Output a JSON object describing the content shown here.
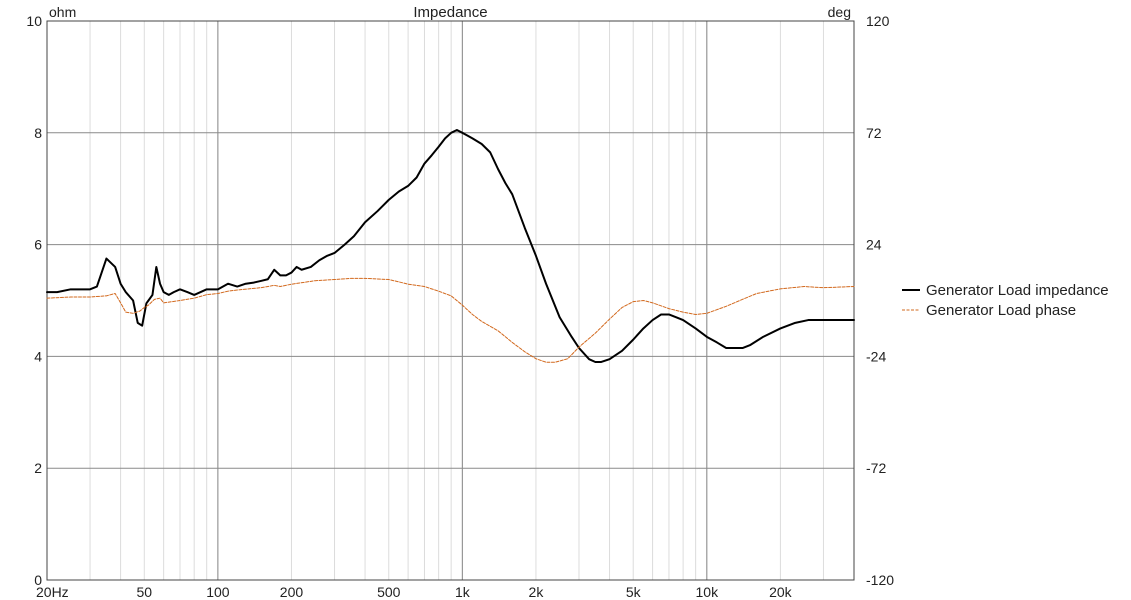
{
  "chart_data": {
    "type": "line",
    "title": "Impedance",
    "left_unit": "ohm",
    "right_unit": "deg",
    "x_scale": "log",
    "xlim": [
      20,
      40000
    ],
    "ylim": [
      0,
      10
    ],
    "y2lim": [
      -120,
      120
    ],
    "grid": true,
    "legend_position": "right",
    "x_ticks": [
      {
        "value": 20,
        "label": "20Hz"
      },
      {
        "value": 50,
        "label": "50"
      },
      {
        "value": 100,
        "label": "100"
      },
      {
        "value": 200,
        "label": "200"
      },
      {
        "value": 500,
        "label": "500"
      },
      {
        "value": 1000,
        "label": "1k"
      },
      {
        "value": 2000,
        "label": "2k"
      },
      {
        "value": 5000,
        "label": "5k"
      },
      {
        "value": 10000,
        "label": "10k"
      },
      {
        "value": 20000,
        "label": "20k"
      }
    ],
    "y_ticks": [
      {
        "value": 0,
        "label": "0"
      },
      {
        "value": 2,
        "label": "2"
      },
      {
        "value": 4,
        "label": "4"
      },
      {
        "value": 6,
        "label": "6"
      },
      {
        "value": 8,
        "label": "8"
      },
      {
        "value": 10,
        "label": "10"
      }
    ],
    "y2_ticks": [
      {
        "value": -120,
        "label": "-120"
      },
      {
        "value": -72,
        "label": "-72"
      },
      {
        "value": -24,
        "label": "-24"
      },
      {
        "value": 24,
        "label": "24"
      },
      {
        "value": 72,
        "label": "72"
      },
      {
        "value": 120,
        "label": "120"
      }
    ],
    "series": [
      {
        "name": "Generator Load impedance",
        "axis": "left",
        "color": "#000000",
        "style": "solid",
        "x": [
          20,
          22,
          25,
          28,
          30,
          32,
          35,
          38,
          40,
          42,
          45,
          47,
          49,
          51,
          52,
          54,
          56,
          58,
          60,
          63,
          66,
          70,
          75,
          80,
          90,
          100,
          110,
          120,
          130,
          140,
          150,
          160,
          170,
          180,
          190,
          200,
          210,
          220,
          240,
          260,
          280,
          300,
          330,
          360,
          400,
          450,
          500,
          550,
          600,
          650,
          700,
          750,
          800,
          850,
          900,
          950,
          1000,
          1050,
          1100,
          1200,
          1300,
          1400,
          1500,
          1600,
          1800,
          2000,
          2200,
          2500,
          2800,
          3000,
          3300,
          3500,
          3700,
          4000,
          4500,
          5000,
          5500,
          6000,
          6500,
          7000,
          7500,
          8000,
          9000,
          10000,
          11000,
          12000,
          13000,
          14000,
          15000,
          17000,
          20000,
          23000,
          26000,
          30000,
          35000,
          40000
        ],
        "y": [
          5.15,
          5.15,
          5.2,
          5.2,
          5.2,
          5.25,
          5.75,
          5.6,
          5.3,
          5.15,
          5.0,
          4.6,
          4.55,
          4.95,
          5.0,
          5.1,
          5.6,
          5.3,
          5.15,
          5.1,
          5.15,
          5.2,
          5.15,
          5.1,
          5.2,
          5.2,
          5.3,
          5.25,
          5.3,
          5.32,
          5.35,
          5.38,
          5.55,
          5.45,
          5.45,
          5.5,
          5.6,
          5.55,
          5.6,
          5.72,
          5.8,
          5.85,
          6.0,
          6.15,
          6.4,
          6.6,
          6.8,
          6.95,
          7.05,
          7.2,
          7.45,
          7.6,
          7.75,
          7.9,
          8.0,
          8.05,
          8.0,
          7.95,
          7.9,
          7.8,
          7.65,
          7.35,
          7.1,
          6.9,
          6.3,
          5.8,
          5.3,
          4.7,
          4.35,
          4.15,
          3.95,
          3.9,
          3.9,
          3.95,
          4.1,
          4.3,
          4.5,
          4.65,
          4.75,
          4.75,
          4.7,
          4.65,
          4.5,
          4.35,
          4.25,
          4.15,
          4.15,
          4.15,
          4.2,
          4.35,
          4.5,
          4.6,
          4.65,
          4.65,
          4.65,
          4.65
        ]
      },
      {
        "name": "Generator Load phase",
        "axis": "right",
        "color": "#d2691e",
        "style": "dashed",
        "x": [
          20,
          25,
          30,
          35,
          38,
          40,
          42,
          45,
          48,
          50,
          52,
          55,
          58,
          60,
          65,
          70,
          80,
          90,
          100,
          110,
          120,
          150,
          170,
          180,
          200,
          250,
          300,
          350,
          400,
          500,
          550,
          600,
          700,
          800,
          900,
          1000,
          1100,
          1200,
          1400,
          1600,
          1800,
          2000,
          2200,
          2400,
          2700,
          3000,
          3500,
          4000,
          4500,
          5000,
          5500,
          6000,
          7000,
          8000,
          9000,
          10000,
          12000,
          14000,
          16000,
          20000,
          25000,
          30000,
          40000
        ],
        "y": [
          1.0,
          1.5,
          1.5,
          2.0,
          3.0,
          -1.0,
          -5.0,
          -5.5,
          -4.5,
          -3.0,
          -2.0,
          0.5,
          1.0,
          -1.0,
          -0.5,
          0.0,
          1.0,
          2.5,
          3.0,
          4.0,
          4.5,
          5.5,
          6.5,
          6.0,
          7.0,
          8.5,
          9.0,
          9.5,
          9.5,
          9.0,
          8.0,
          7.0,
          6.0,
          4.0,
          2.0,
          -2.0,
          -6.0,
          -9.0,
          -13.0,
          -18.0,
          -22.0,
          -25.0,
          -26.5,
          -26.5,
          -25.0,
          -20.0,
          -14.0,
          -8.0,
          -3.0,
          -0.5,
          0.0,
          -1.0,
          -3.5,
          -5.0,
          -6.0,
          -5.5,
          -2.5,
          0.5,
          3.0,
          5.0,
          6.0,
          5.5,
          6.0
        ]
      }
    ]
  }
}
